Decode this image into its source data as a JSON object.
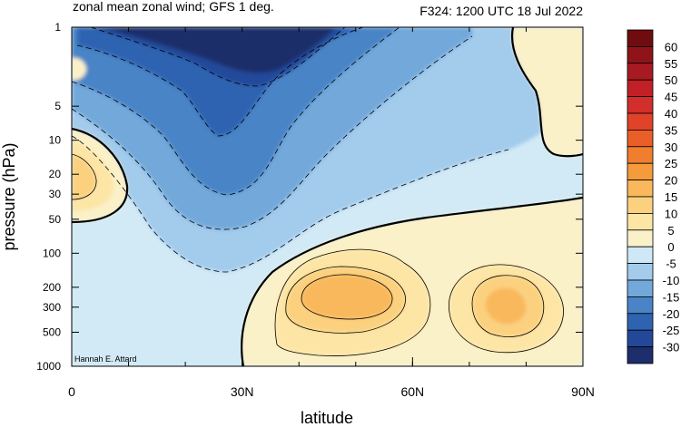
{
  "chart_data": {
    "type": "contour",
    "title_left": "zonal mean zonal wind; GFS 1 deg.",
    "title_right": "F324: 1200 UTC 18 Jul 2022",
    "xlabel": "latitude",
    "ylabel": "pressure (hPa)",
    "credit": "Hannah E. Attard",
    "x_ticks": [
      {
        "value": 0,
        "label": "0"
      },
      {
        "value": 30,
        "label": "30N"
      },
      {
        "value": 60,
        "label": "60N"
      },
      {
        "value": 90,
        "label": "90N"
      }
    ],
    "xlim": [
      0,
      90
    ],
    "y_scale": "log",
    "y_ticks": [
      {
        "value": 1,
        "label": "1"
      },
      {
        "value": 5,
        "label": "5"
      },
      {
        "value": 10,
        "label": "10"
      },
      {
        "value": 20,
        "label": "20"
      },
      {
        "value": 30,
        "label": "30"
      },
      {
        "value": 50,
        "label": "50"
      },
      {
        "value": 100,
        "label": "100"
      },
      {
        "value": 200,
        "label": "200"
      },
      {
        "value": 300,
        "label": "300"
      },
      {
        "value": 500,
        "label": "500"
      },
      {
        "value": 1000,
        "label": "1000"
      }
    ],
    "ylim": [
      1000,
      1
    ],
    "colorbar": {
      "levels": [
        "-30",
        "-25",
        "-20",
        "-15",
        "-10",
        "-5",
        "0",
        "5",
        "10",
        "15",
        "20",
        "25",
        "30",
        "35",
        "40",
        "45",
        "50",
        "55",
        "60"
      ],
      "colors": [
        "#1e2d6b",
        "#23489a",
        "#2e63b1",
        "#4a84c6",
        "#72a8da",
        "#a2cbec",
        "#cfe8f5",
        "#fbf1c8",
        "#fde5a6",
        "#fbd180",
        "#f9b85c",
        "#f59b3c",
        "#f07e2e",
        "#ea5f27",
        "#e0432a",
        "#d22e2b",
        "#c02026",
        "#a81a22",
        "#8e1419",
        "#6e0c10"
      ]
    },
    "regions": [
      {
        "level": -30,
        "peak": [
          23,
          1.3
        ]
      },
      {
        "level": 10,
        "peak": [
          0,
          22
        ]
      },
      {
        "level": 20,
        "peak": [
          47,
          220
        ]
      },
      {
        "level": 20,
        "peak": [
          75,
          290
        ]
      }
    ]
  }
}
